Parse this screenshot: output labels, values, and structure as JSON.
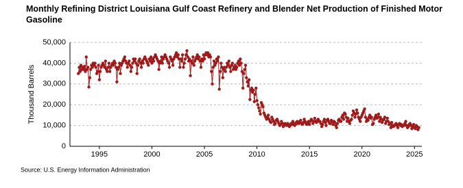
{
  "chart_data": {
    "type": "line",
    "title": "Monthly Refining District Louisiana Gulf Coast Refinery and Blender Net Production of Finished Motor Gasoline",
    "y_label": "Thousand Barrels",
    "source": "Source: U.S. Energy Information Administration",
    "xlim": [
      1992.2,
      2025.7
    ],
    "xticks": [
      1995,
      2000,
      2005,
      2010,
      2015,
      2020,
      2025
    ],
    "ylim": [
      0,
      50000
    ],
    "yticks": [
      0,
      {
        "value": 10000,
        "label": "10,000"
      },
      {
        "value": 20000,
        "label": "20,000"
      },
      {
        "value": 30000,
        "label": "30,000"
      },
      {
        "value": 40000,
        "label": "40,000"
      },
      {
        "value": 50000,
        "label": "50,000"
      }
    ],
    "grid": true,
    "x": [
      "1993-01",
      "1993-02",
      "1993-03",
      "1993-04",
      "1993-05",
      "1993-06",
      "1993-07",
      "1993-08",
      "1993-09",
      "1993-10",
      "1993-11",
      "1993-12",
      "1994-01",
      "1994-02",
      "1994-03",
      "1994-04",
      "1994-05",
      "1994-06",
      "1994-07",
      "1994-08",
      "1994-09",
      "1994-10",
      "1994-11",
      "1994-12",
      "1995-01",
      "1995-02",
      "1995-03",
      "1995-04",
      "1995-05",
      "1995-06",
      "1995-07",
      "1995-08",
      "1995-09",
      "1995-10",
      "1995-11",
      "1995-12",
      "1996-01",
      "1996-02",
      "1996-03",
      "1996-04",
      "1996-05",
      "1996-06",
      "1996-07",
      "1996-08",
      "1996-09",
      "1996-10",
      "1996-11",
      "1996-12",
      "1997-01",
      "1997-02",
      "1997-03",
      "1997-04",
      "1997-05",
      "1997-06",
      "1997-07",
      "1997-08",
      "1997-09",
      "1997-10",
      "1997-11",
      "1997-12",
      "1998-01",
      "1998-02",
      "1998-03",
      "1998-04",
      "1998-05",
      "1998-06",
      "1998-07",
      "1998-08",
      "1998-09",
      "1998-10",
      "1998-11",
      "1998-12",
      "1999-01",
      "1999-02",
      "1999-03",
      "1999-04",
      "1999-05",
      "1999-06",
      "1999-07",
      "1999-08",
      "1999-09",
      "1999-10",
      "1999-11",
      "1999-12",
      "2000-01",
      "2000-02",
      "2000-03",
      "2000-04",
      "2000-05",
      "2000-06",
      "2000-07",
      "2000-08",
      "2000-09",
      "2000-10",
      "2000-11",
      "2000-12",
      "2001-01",
      "2001-02",
      "2001-03",
      "2001-04",
      "2001-05",
      "2001-06",
      "2001-07",
      "2001-08",
      "2001-09",
      "2001-10",
      "2001-11",
      "2001-12",
      "2002-01",
      "2002-02",
      "2002-03",
      "2002-04",
      "2002-05",
      "2002-06",
      "2002-07",
      "2002-08",
      "2002-09",
      "2002-10",
      "2002-11",
      "2002-12",
      "2003-01",
      "2003-02",
      "2003-03",
      "2003-04",
      "2003-05",
      "2003-06",
      "2003-07",
      "2003-08",
      "2003-09",
      "2003-10",
      "2003-11",
      "2003-12",
      "2004-01",
      "2004-02",
      "2004-03",
      "2004-04",
      "2004-05",
      "2004-06",
      "2004-07",
      "2004-08",
      "2004-09",
      "2004-10",
      "2004-11",
      "2004-12",
      "2005-01",
      "2005-02",
      "2005-03",
      "2005-04",
      "2005-05",
      "2005-06",
      "2005-07",
      "2005-08",
      "2005-09",
      "2005-10",
      "2005-11",
      "2005-12",
      "2006-01",
      "2006-02",
      "2006-03",
      "2006-04",
      "2006-05",
      "2006-06",
      "2006-07",
      "2006-08",
      "2006-09",
      "2006-10",
      "2006-11",
      "2006-12",
      "2007-01",
      "2007-02",
      "2007-03",
      "2007-04",
      "2007-05",
      "2007-06",
      "2007-07",
      "2007-08",
      "2007-09",
      "2007-10",
      "2007-11",
      "2007-12",
      "2008-01",
      "2008-02",
      "2008-03",
      "2008-04",
      "2008-05",
      "2008-06",
      "2008-07",
      "2008-08",
      "2008-09",
      "2008-10",
      "2008-11",
      "2008-12",
      "2009-01",
      "2009-02",
      "2009-03",
      "2009-04",
      "2009-05",
      "2009-06",
      "2009-07",
      "2009-08",
      "2009-09",
      "2009-10",
      "2009-11",
      "2009-12",
      "2010-01",
      "2010-02",
      "2010-03",
      "2010-04",
      "2010-05",
      "2010-06",
      "2010-07",
      "2010-08",
      "2010-09",
      "2010-10",
      "2010-11",
      "2010-12",
      "2011-01",
      "2011-02",
      "2011-03",
      "2011-04",
      "2011-05",
      "2011-06",
      "2011-07",
      "2011-08",
      "2011-09",
      "2011-10",
      "2011-11",
      "2011-12",
      "2012-01",
      "2012-02",
      "2012-03",
      "2012-04",
      "2012-05",
      "2012-06",
      "2012-07",
      "2012-08",
      "2012-09",
      "2012-10",
      "2012-11",
      "2012-12",
      "2013-01",
      "2013-02",
      "2013-03",
      "2013-04",
      "2013-05",
      "2013-06",
      "2013-07",
      "2013-08",
      "2013-09",
      "2013-10",
      "2013-11",
      "2013-12",
      "2014-01",
      "2014-02",
      "2014-03",
      "2014-04",
      "2014-05",
      "2014-06",
      "2014-07",
      "2014-08",
      "2014-09",
      "2014-10",
      "2014-11",
      "2014-12",
      "2015-01",
      "2015-02",
      "2015-03",
      "2015-04",
      "2015-05",
      "2015-06",
      "2015-07",
      "2015-08",
      "2015-09",
      "2015-10",
      "2015-11",
      "2015-12",
      "2016-01",
      "2016-02",
      "2016-03",
      "2016-04",
      "2016-05",
      "2016-06",
      "2016-07",
      "2016-08",
      "2016-09",
      "2016-10",
      "2016-11",
      "2016-12",
      "2017-01",
      "2017-02",
      "2017-03",
      "2017-04",
      "2017-05",
      "2017-06",
      "2017-07",
      "2017-08",
      "2017-09",
      "2017-10",
      "2017-11",
      "2017-12",
      "2018-01",
      "2018-02",
      "2018-03",
      "2018-04",
      "2018-05",
      "2018-06",
      "2018-07",
      "2018-08",
      "2018-09",
      "2018-10",
      "2018-11",
      "2018-12",
      "2019-01",
      "2019-02",
      "2019-03",
      "2019-04",
      "2019-05",
      "2019-06",
      "2019-07",
      "2019-08",
      "2019-09",
      "2019-10",
      "2019-11",
      "2019-12",
      "2020-01",
      "2020-02",
      "2020-03",
      "2020-04",
      "2020-05",
      "2020-06",
      "2020-07",
      "2020-08",
      "2020-09",
      "2020-10",
      "2020-11",
      "2020-12",
      "2021-01",
      "2021-02",
      "2021-03",
      "2021-04",
      "2021-05",
      "2021-06",
      "2021-07",
      "2021-08",
      "2021-09",
      "2021-10",
      "2021-11",
      "2021-12",
      "2022-01",
      "2022-02",
      "2022-03",
      "2022-04",
      "2022-05",
      "2022-06",
      "2022-07",
      "2022-08",
      "2022-09",
      "2022-10",
      "2022-11",
      "2022-12",
      "2023-01",
      "2023-02",
      "2023-03",
      "2023-04",
      "2023-05",
      "2023-06",
      "2023-07",
      "2023-08",
      "2023-09",
      "2023-10",
      "2023-11",
      "2023-12",
      "2024-01",
      "2024-02",
      "2024-03",
      "2024-04",
      "2024-05",
      "2024-06",
      "2024-07",
      "2024-08",
      "2024-09",
      "2024-10",
      "2024-11",
      "2024-12",
      "2025-01",
      "2025-02",
      "2025-03",
      "2025-04",
      "2025-05",
      "2025-06"
    ],
    "series": [
      {
        "color": "#9e1b1b",
        "values": [
          35000,
          38000,
          36000,
          39000,
          37000,
          38000,
          37000,
          38500,
          36000,
          43000,
          37000,
          38000,
          28500,
          33000,
          37000,
          39000,
          38000,
          40000,
          39000,
          40000,
          38000,
          35000,
          36000,
          39000,
          32000,
          36000,
          38000,
          39000,
          40000,
          39000,
          38000,
          41000,
          37000,
          36000,
          38000,
          40000,
          36000,
          38000,
          39000,
          40000,
          39000,
          41000,
          40000,
          38000,
          31000,
          37000,
          38000,
          40000,
          35000,
          39000,
          40000,
          41000,
          42000,
          43000,
          41000,
          40000,
          38000,
          40000,
          41000,
          39000,
          36000,
          38000,
          40000,
          42000,
          41000,
          42000,
          40000,
          35000,
          39000,
          41000,
          42000,
          40000,
          38000,
          41000,
          40000,
          42000,
          43000,
          42000,
          41000,
          40000,
          39000,
          42000,
          41000,
          43000,
          40000,
          42000,
          41000,
          43000,
          44000,
          43000,
          42000,
          41000,
          37000,
          40000,
          41000,
          43000,
          40000,
          42000,
          43000,
          44000,
          43000,
          42000,
          41000,
          40000,
          38000,
          43000,
          42000,
          41000,
          39000,
          42000,
          43000,
          44000,
          45000,
          43000,
          44000,
          42000,
          38000,
          42000,
          41000,
          44000,
          38000,
          40000,
          42000,
          44000,
          46000,
          43000,
          41000,
          42000,
          34000,
          41000,
          40000,
          43000,
          39000,
          41000,
          42000,
          43000,
          44000,
          42000,
          43000,
          41000,
          38000,
          42000,
          41000,
          44000,
          42000,
          44000,
          45000,
          44000,
          45000,
          43000,
          44000,
          43000,
          36000,
          30000,
          38000,
          41000,
          39000,
          40000,
          42000,
          41000,
          43000,
          27500,
          36000,
          40000,
          38000,
          33000,
          37000,
          38000,
          36000,
          38000,
          40000,
          39000,
          41000,
          38000,
          36000,
          39000,
          40000,
          37000,
          38000,
          39000,
          37000,
          38000,
          40000,
          41000,
          39000,
          42000,
          40000,
          36000,
          28000,
          35000,
          37000,
          39000,
          33000,
          31000,
          29000,
          32000,
          22500,
          27000,
          28000,
          26000,
          27000,
          21500,
          25000,
          28000,
          22000,
          20000,
          18500,
          17000,
          15500,
          21000,
          20000,
          19000,
          16000,
          15000,
          14000,
          13000,
          14000,
          15000,
          13000,
          12000,
          11500,
          14000,
          13000,
          12000,
          10500,
          11000,
          12500,
          13000,
          12000,
          11000,
          10000,
          10500,
          12000,
          11000,
          9500,
          10000,
          11000,
          10500,
          10000,
          11000,
          10500,
          9500,
          10000,
          11000,
          10500,
          12000,
          11000,
          10000,
          10500,
          11500,
          12000,
          11000,
          11000,
          12000,
          12500,
          11000,
          10500,
          11500,
          13000,
          12000,
          11000,
          10500,
          11500,
          12000,
          10500,
          12000,
          13000,
          12500,
          11000,
          12000,
          13500,
          12000,
          11500,
          12500,
          13000,
          12000,
          12000,
          11000,
          9500,
          10500,
          12000,
          13000,
          11500,
          10000,
          12500,
          13000,
          12000,
          11000,
          11000,
          12500,
          12000,
          10500,
          12000,
          11500,
          10000,
          9000,
          11000,
          12500,
          13000,
          12000,
          12000,
          14000,
          15000,
          13000,
          16000,
          15500,
          14000,
          12000,
          13500,
          12000,
          11000,
          12500,
          13000,
          15000,
          17000,
          16000,
          14000,
          15500,
          17500,
          16000,
          14000,
          13000,
          12000,
          14000,
          15000,
          16000,
          17000,
          18000,
          14000,
          12000,
          13000,
          12500,
          14000,
          15000,
          13500,
          14000,
          10500,
          11000,
          13000,
          14000,
          15000,
          13500,
          14000,
          15500,
          12000,
          14000,
          13000,
          11500,
          12500,
          13000,
          14000,
          11000,
          12000,
          13500,
          12000,
          10500,
          11000,
          9000,
          11500,
          10000,
          9500,
          10000,
          10500,
          11000,
          10000,
          9000,
          10500,
          11000,
          10000,
          10500,
          9500,
          10000,
          10000,
          11000,
          12000,
          10000,
          9000,
          9500,
          10500,
          11000,
          10000,
          8500,
          9500,
          10500,
          9000,
          8500,
          10000,
          9500,
          8000,
          9000
        ]
      }
    ]
  }
}
